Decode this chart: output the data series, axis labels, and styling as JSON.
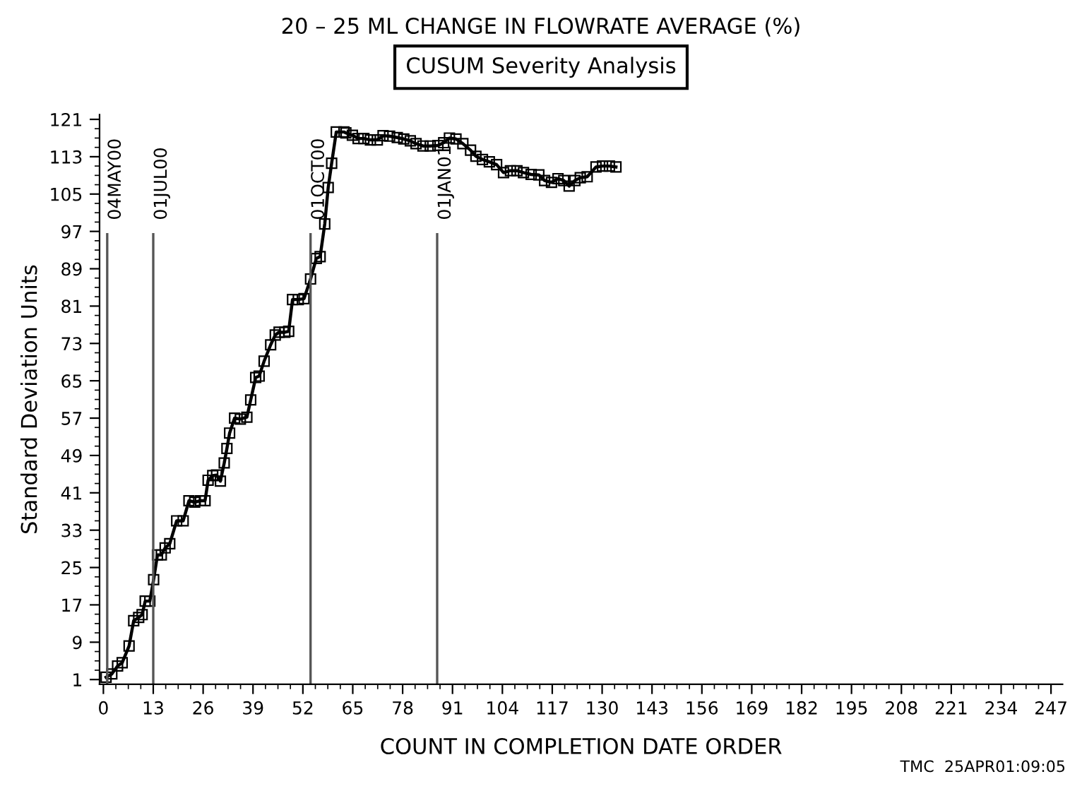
{
  "chart_data": {
    "type": "line",
    "title": "20 – 25 ML CHANGE IN FLOWRATE AVERAGE (%)",
    "subtitle": "CUSUM Severity Analysis",
    "xlabel": "COUNT IN COMPLETION DATE ORDER",
    "ylabel": "Standard Deviation Units",
    "annotations": [
      "TMC  25APR01:09:05"
    ],
    "series": [
      {
        "color": "#000000",
        "x": [
          0.7,
          2.2,
          3.7,
          4.9,
          6.7,
          7.9,
          9.2,
          10.1,
          10.9,
          12.1,
          13.1,
          14.1,
          15.1,
          16.1,
          17.3,
          19.1,
          20.8,
          22.3,
          23.8,
          25.3,
          26.5,
          27.3,
          28.5,
          29.5,
          30.5,
          31.5,
          32.2,
          32.9,
          34.2,
          35.7,
          37.4,
          38.4,
          39.7,
          40.6,
          41.9,
          43.6,
          44.8,
          45.8,
          47.3,
          48.3,
          49.3,
          50.8,
          52.3,
          54,
          55.5,
          56.5,
          57.7,
          58.6,
          59.5,
          60.7,
          62.7,
          63.2,
          64.9,
          66.4,
          67.9,
          69.6,
          71.4,
          72.9,
          74.6,
          76.6,
          78.3,
          80,
          81.5,
          83.3,
          85.2,
          87.2,
          88.7,
          90.2,
          91.9,
          93.7,
          95.7,
          97.1,
          98.8,
          100.6,
          102.5,
          104.3,
          106.1,
          107.8,
          109.5,
          111.5,
          113.5,
          115,
          116.8,
          118.5,
          120,
          121.4,
          122.9,
          124.3,
          126.1,
          128.4,
          130.1,
          131.9,
          133.6
        ],
        "values": [
          1.5,
          2.2,
          3.9,
          4.6,
          8.2,
          13.6,
          14.3,
          14.9,
          17.8,
          17.8,
          22.4,
          27.7,
          27.7,
          29.2,
          30.1,
          35,
          35,
          39.3,
          39,
          39.3,
          39.3,
          43.7,
          44.7,
          44.8,
          43.5,
          47.4,
          50.5,
          53.8,
          57,
          56.8,
          57.2,
          60.9,
          65.7,
          66,
          69.2,
          72.7,
          74.8,
          75.4,
          75.4,
          75.6,
          82.4,
          82.4,
          82.6,
          86.8,
          91.2,
          91.6,
          98.6,
          106.4,
          111.6,
          118.3,
          118.3,
          118.1,
          117.6,
          116.9,
          116.9,
          116.6,
          116.6,
          117.5,
          117.4,
          117.1,
          116.8,
          116.4,
          115.8,
          115.3,
          115.3,
          115.4,
          116,
          117,
          116.8,
          115.8,
          114.4,
          113.1,
          112.4,
          111.9,
          111.3,
          109.6,
          110,
          110,
          109.6,
          109.2,
          109.1,
          107.9,
          107.5,
          108.3,
          107.9,
          106.7,
          107.9,
          108.5,
          108.7,
          110.8,
          111,
          111,
          110.8
        ]
      }
    ],
    "marker": "square",
    "line_style": "solid",
    "xlim": [
      -1,
      250
    ],
    "xticks": [
      0,
      13,
      26,
      39,
      52,
      65,
      78,
      91,
      104,
      117,
      130,
      143,
      156,
      169,
      182,
      195,
      208,
      221,
      234,
      247
    ],
    "ylim": [
      0,
      122
    ],
    "yticks": [
      1,
      9,
      17,
      25,
      33,
      41,
      49,
      57,
      65,
      73,
      81,
      89,
      97,
      105,
      113,
      121
    ],
    "ref_lines": [
      {
        "axis": "x",
        "value": 1,
        "label": "04MAY00",
        "color": "#555555"
      },
      {
        "axis": "x",
        "value": 13,
        "label": "01JUL00",
        "color": "#555555"
      },
      {
        "axis": "x",
        "value": 54,
        "label": "01OCT00",
        "color": "#555555"
      },
      {
        "axis": "x",
        "value": 87,
        "label": "01JAN01",
        "color": "#555555"
      }
    ],
    "grid": false,
    "legend": false
  }
}
